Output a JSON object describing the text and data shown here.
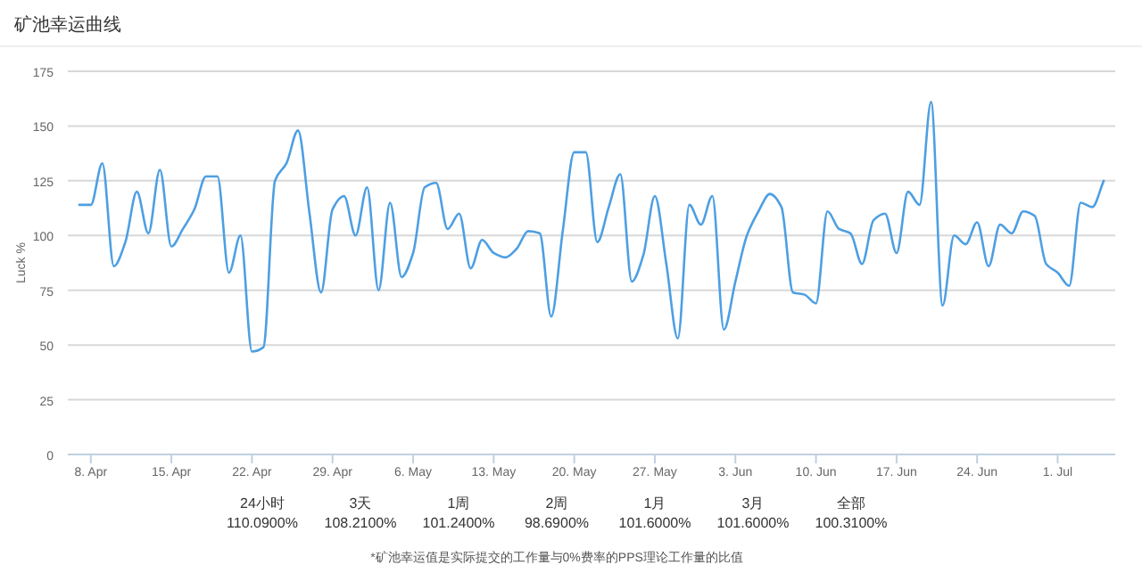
{
  "chart_data": {
    "type": "line",
    "title": "矿池幸运曲线",
    "ylabel": "Luck %",
    "x": [
      "--04-07",
      "--04-08",
      "--04-09",
      "--04-10",
      "--04-11",
      "--04-12",
      "--04-13",
      "--04-14",
      "--04-15",
      "--04-16",
      "--04-17",
      "--04-18",
      "--04-19",
      "--04-20",
      "--04-21",
      "--04-22",
      "--04-23",
      "--04-24",
      "--04-25",
      "--04-26",
      "--04-27",
      "--04-28",
      "--04-29",
      "--04-30",
      "--05-01",
      "--05-02",
      "--05-03",
      "--05-04",
      "--05-05",
      "--05-06",
      "--05-07",
      "--05-08",
      "--05-09",
      "--05-10",
      "--05-11",
      "--05-12",
      "--05-13",
      "--05-14",
      "--05-15",
      "--05-16",
      "--05-17",
      "--05-18",
      "--05-19",
      "--05-20",
      "--05-21",
      "--05-22",
      "--05-23",
      "--05-24",
      "--05-25",
      "--05-26",
      "--05-27",
      "--05-28",
      "--05-29",
      "--05-30",
      "--05-31",
      "--06-01",
      "--06-02",
      "--06-03",
      "--06-04",
      "--06-05",
      "--06-06",
      "--06-07",
      "--06-08",
      "--06-09",
      "--06-10",
      "--06-11",
      "--06-12",
      "--06-13",
      "--06-14",
      "--06-15",
      "--06-16",
      "--06-17",
      "--06-18",
      "--06-19",
      "--06-20",
      "--06-21",
      "--06-22",
      "--06-23",
      "--06-24",
      "--06-25",
      "--06-26",
      "--06-27",
      "--06-28",
      "--06-29",
      "--06-30",
      "--07-01",
      "--07-02",
      "--07-03",
      "--07-04",
      "--07-05"
    ],
    "series": [
      {
        "color": "#4d9fe3",
        "values": [
          114,
          114,
          133,
          86,
          97,
          120,
          101,
          130,
          95,
          103,
          112,
          127,
          127,
          83,
          100,
          47,
          49,
          125,
          133,
          148,
          110,
          74,
          112,
          118,
          100,
          122,
          75,
          115,
          81,
          92,
          122,
          124,
          103,
          110,
          85,
          98,
          92,
          90,
          94,
          102,
          101,
          63,
          102,
          138,
          138,
          97,
          113,
          128,
          79,
          91,
          118,
          87,
          53,
          114,
          105,
          118,
          57,
          79,
          100,
          111,
          119,
          113,
          74,
          73,
          69,
          111,
          103,
          101,
          87,
          107,
          110,
          92,
          120,
          114,
          161,
          68,
          100,
          96,
          106,
          86,
          105,
          101,
          111,
          109,
          87,
          83,
          77,
          115,
          113,
          125
        ]
      }
    ],
    "xlim": [
      "--04-06",
      "--07-06"
    ],
    "xticks": [
      {
        "value": "--04-08",
        "label": "8. Apr"
      },
      {
        "value": "--04-15",
        "label": "15. Apr"
      },
      {
        "value": "--04-22",
        "label": "22. Apr"
      },
      {
        "value": "--04-29",
        "label": "29. Apr"
      },
      {
        "value": "--05-06",
        "label": "6. May"
      },
      {
        "value": "--05-13",
        "label": "13. May"
      },
      {
        "value": "--05-20",
        "label": "20. May"
      },
      {
        "value": "--05-27",
        "label": "27. May"
      },
      {
        "value": "--06-03",
        "label": "3. Jun"
      },
      {
        "value": "--06-10",
        "label": "10. Jun"
      },
      {
        "value": "--06-17",
        "label": "17. Jun"
      },
      {
        "value": "--06-24",
        "label": "24. Jun"
      },
      {
        "value": "--07-01",
        "label": "1. Jul"
      }
    ],
    "ylim": [
      0,
      175
    ],
    "yticks": [
      0,
      25,
      50,
      75,
      100,
      125,
      150,
      175
    ],
    "grid": "y",
    "annotations": [
      "24小时\n110.0900%",
      "3天\n108.2100%",
      "1周\n101.2400%",
      "2周\n98.6900%",
      "1月\n101.6000%",
      "3月\n101.6000%",
      "全部\n100.3100%",
      "*矿池幸运值是实际提交的工作量与0%费率的PPS理论工作量的比值"
    ]
  }
}
